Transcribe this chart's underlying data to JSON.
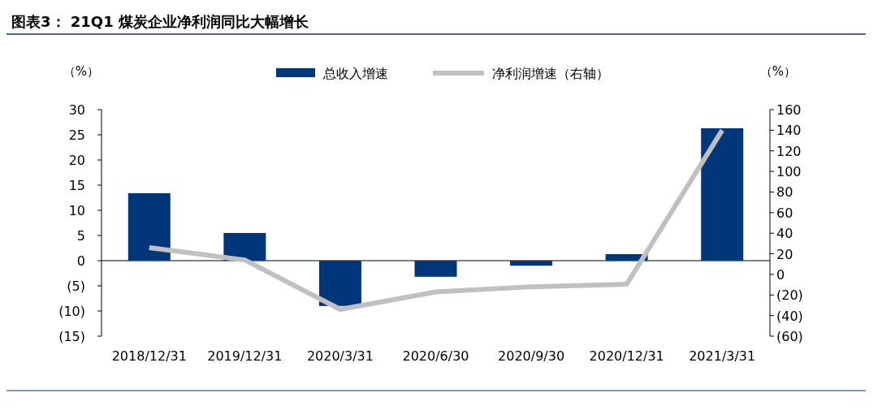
{
  "chart_data": {
    "type": "bar",
    "title": "图表3： 21Q1 煤炭企业净利润同比大幅增长",
    "ylabel": "（%）",
    "y2label": "（%）",
    "categories": [
      "2018/12/31",
      "2019/12/31",
      "2020/3/31",
      "2020/6/30",
      "2020/9/30",
      "2020/12/31",
      "2021/3/31"
    ],
    "series": [
      {
        "name": "总收入增速",
        "color": "#00367a",
        "values": [
          13.4,
          5.5,
          -9.0,
          -3.2,
          -1.0,
          1.3,
          26.3
        ]
      },
      {
        "name": "净利润增速（右轴）",
        "type": "line",
        "axis": "y2",
        "color": "#c0c0c0",
        "values": [
          26,
          14,
          -34,
          -17,
          -12,
          -9.5,
          140
        ]
      }
    ],
    "ylim": [
      -15,
      30
    ],
    "yticks": [
      {
        "value": -15,
        "label": "(15)"
      },
      {
        "value": -10,
        "label": "(10)"
      },
      {
        "value": -5,
        "label": "(5)"
      },
      0,
      5,
      10,
      15,
      20,
      25,
      30
    ],
    "y2lim": [
      -60,
      160
    ],
    "y2ticks": [
      {
        "value": -60,
        "label": "(60)"
      },
      {
        "value": -40,
        "label": "(40)"
      },
      {
        "value": -20,
        "label": "(20)"
      },
      0,
      20,
      40,
      60,
      80,
      100,
      120,
      140,
      160
    ],
    "legend": "top"
  }
}
